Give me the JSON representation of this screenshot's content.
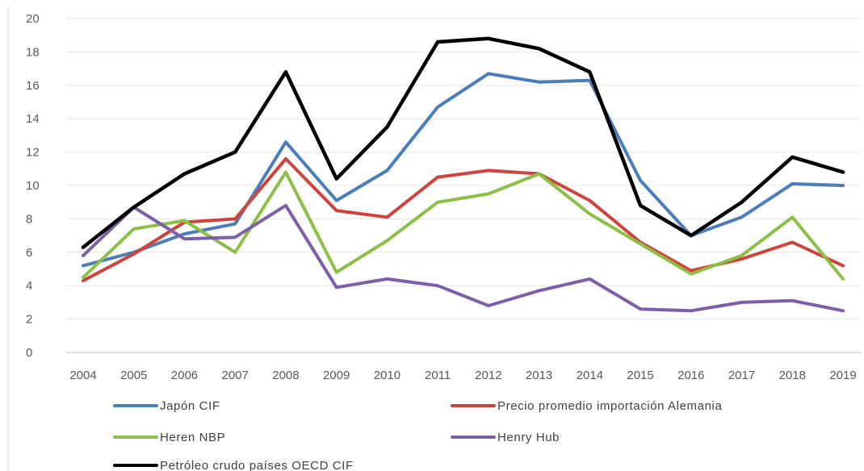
{
  "chart_data": {
    "type": "line",
    "title": "",
    "xlabel": "",
    "ylabel": "",
    "ylim": [
      0,
      20
    ],
    "y_ticks": [
      0,
      2,
      4,
      6,
      8,
      10,
      12,
      14,
      16,
      18,
      20
    ],
    "categories": [
      "2004",
      "2005",
      "2006",
      "2007",
      "2008",
      "2009",
      "2010",
      "2011",
      "2012",
      "2013",
      "2014",
      "2015",
      "2016",
      "2017",
      "2018",
      "2019"
    ],
    "grid": "horizontal",
    "legend_position": "bottom",
    "series": [
      {
        "name": "Japón CIF",
        "color": "#4a7ebb",
        "values": [
          5.2,
          6.0,
          7.1,
          7.7,
          12.6,
          9.1,
          10.9,
          14.7,
          16.7,
          16.2,
          16.3,
          10.3,
          7.0,
          8.1,
          10.1,
          10.0
        ]
      },
      {
        "name": "Precio promedio importación Alemania",
        "color": "#d0423b",
        "values": [
          4.3,
          5.9,
          7.8,
          8.0,
          11.6,
          8.5,
          8.1,
          10.5,
          10.9,
          10.7,
          9.1,
          6.6,
          4.9,
          5.6,
          6.6,
          5.2
        ]
      },
      {
        "name": "Heren NBP",
        "color": "#8cbf45",
        "values": [
          4.5,
          7.4,
          7.9,
          6.0,
          10.8,
          4.8,
          6.7,
          9.0,
          9.5,
          10.7,
          8.3,
          6.5,
          4.7,
          5.8,
          8.1,
          4.4
        ]
      },
      {
        "name": "Henry Hub",
        "color": "#7e5ea8",
        "values": [
          5.8,
          8.7,
          6.8,
          6.9,
          8.8,
          3.9,
          4.4,
          4.0,
          2.8,
          3.7,
          4.4,
          2.6,
          2.5,
          3.0,
          3.1,
          2.5
        ]
      },
      {
        "name": "Petróleo crudo países OECD CIF",
        "color": "#000000",
        "values": [
          6.3,
          8.7,
          10.7,
          12.0,
          16.8,
          10.4,
          13.5,
          18.6,
          18.8,
          18.2,
          16.8,
          8.8,
          7.0,
          9.0,
          11.7,
          10.8
        ]
      }
    ]
  }
}
